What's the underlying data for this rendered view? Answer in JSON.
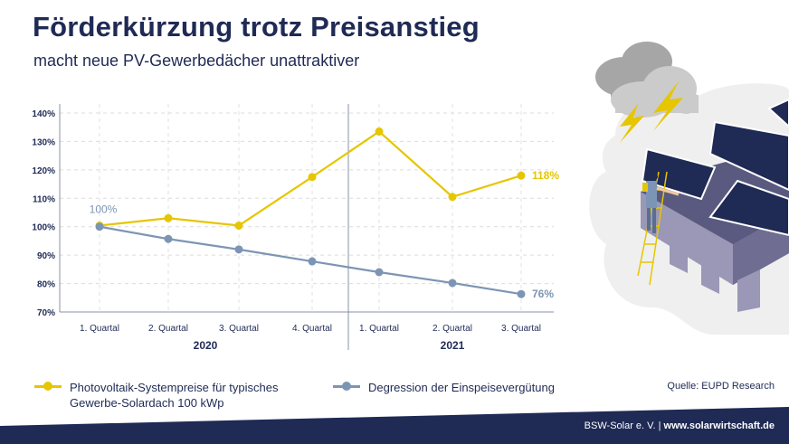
{
  "header": {
    "title": "Förderkürzung trotz Preisanstieg",
    "subtitle": "macht neue PV-Gewerbedächer unattraktiver"
  },
  "chart_data": {
    "type": "line",
    "categories": [
      "1. Quartal",
      "2. Quartal",
      "3. Quartal",
      "4. Quartal",
      "1. Quartal",
      "2. Quartal",
      "3. Quartal"
    ],
    "groups": [
      {
        "label": "2020",
        "count": 4
      },
      {
        "label": "2021",
        "count": 3
      }
    ],
    "yticks": [
      "70%",
      "80%",
      "90%",
      "100%",
      "110%",
      "120%",
      "130%",
      "140%"
    ],
    "ylim": [
      70,
      140
    ],
    "grid": true,
    "legend_position": "bottom",
    "series": [
      {
        "name": "Photovoltaik-Systempreise für typisches Gewerbe-Solardach 100 kWp",
        "color": "#e6c600",
        "values": [
          100.4,
          103,
          100.4,
          117.5,
          133.5,
          110.5,
          118
        ],
        "end_label": "118%"
      },
      {
        "name": "Degression der Einspeisevergütung",
        "color": "#7d95b4",
        "values": [
          100,
          95.7,
          92,
          87.8,
          84,
          80.2,
          76.3
        ],
        "start_label": "100%",
        "end_label": "76%"
      }
    ]
  },
  "legend": {
    "series1_line1": "Photovoltaik-Systempreise für typisches",
    "series1_line2": "Gewerbe-Solardach 100 kWp",
    "series2": "Degression der Einspeisevergütung"
  },
  "source": "Quelle: EUPD Research",
  "footer": {
    "org": "BSW-Solar e. V.",
    "separator": "|",
    "url": "www.solarwirtschaft.de"
  },
  "colors": {
    "navy": "#1f2a55",
    "yellow": "#e6c600",
    "bluegray": "#7d95b4"
  }
}
